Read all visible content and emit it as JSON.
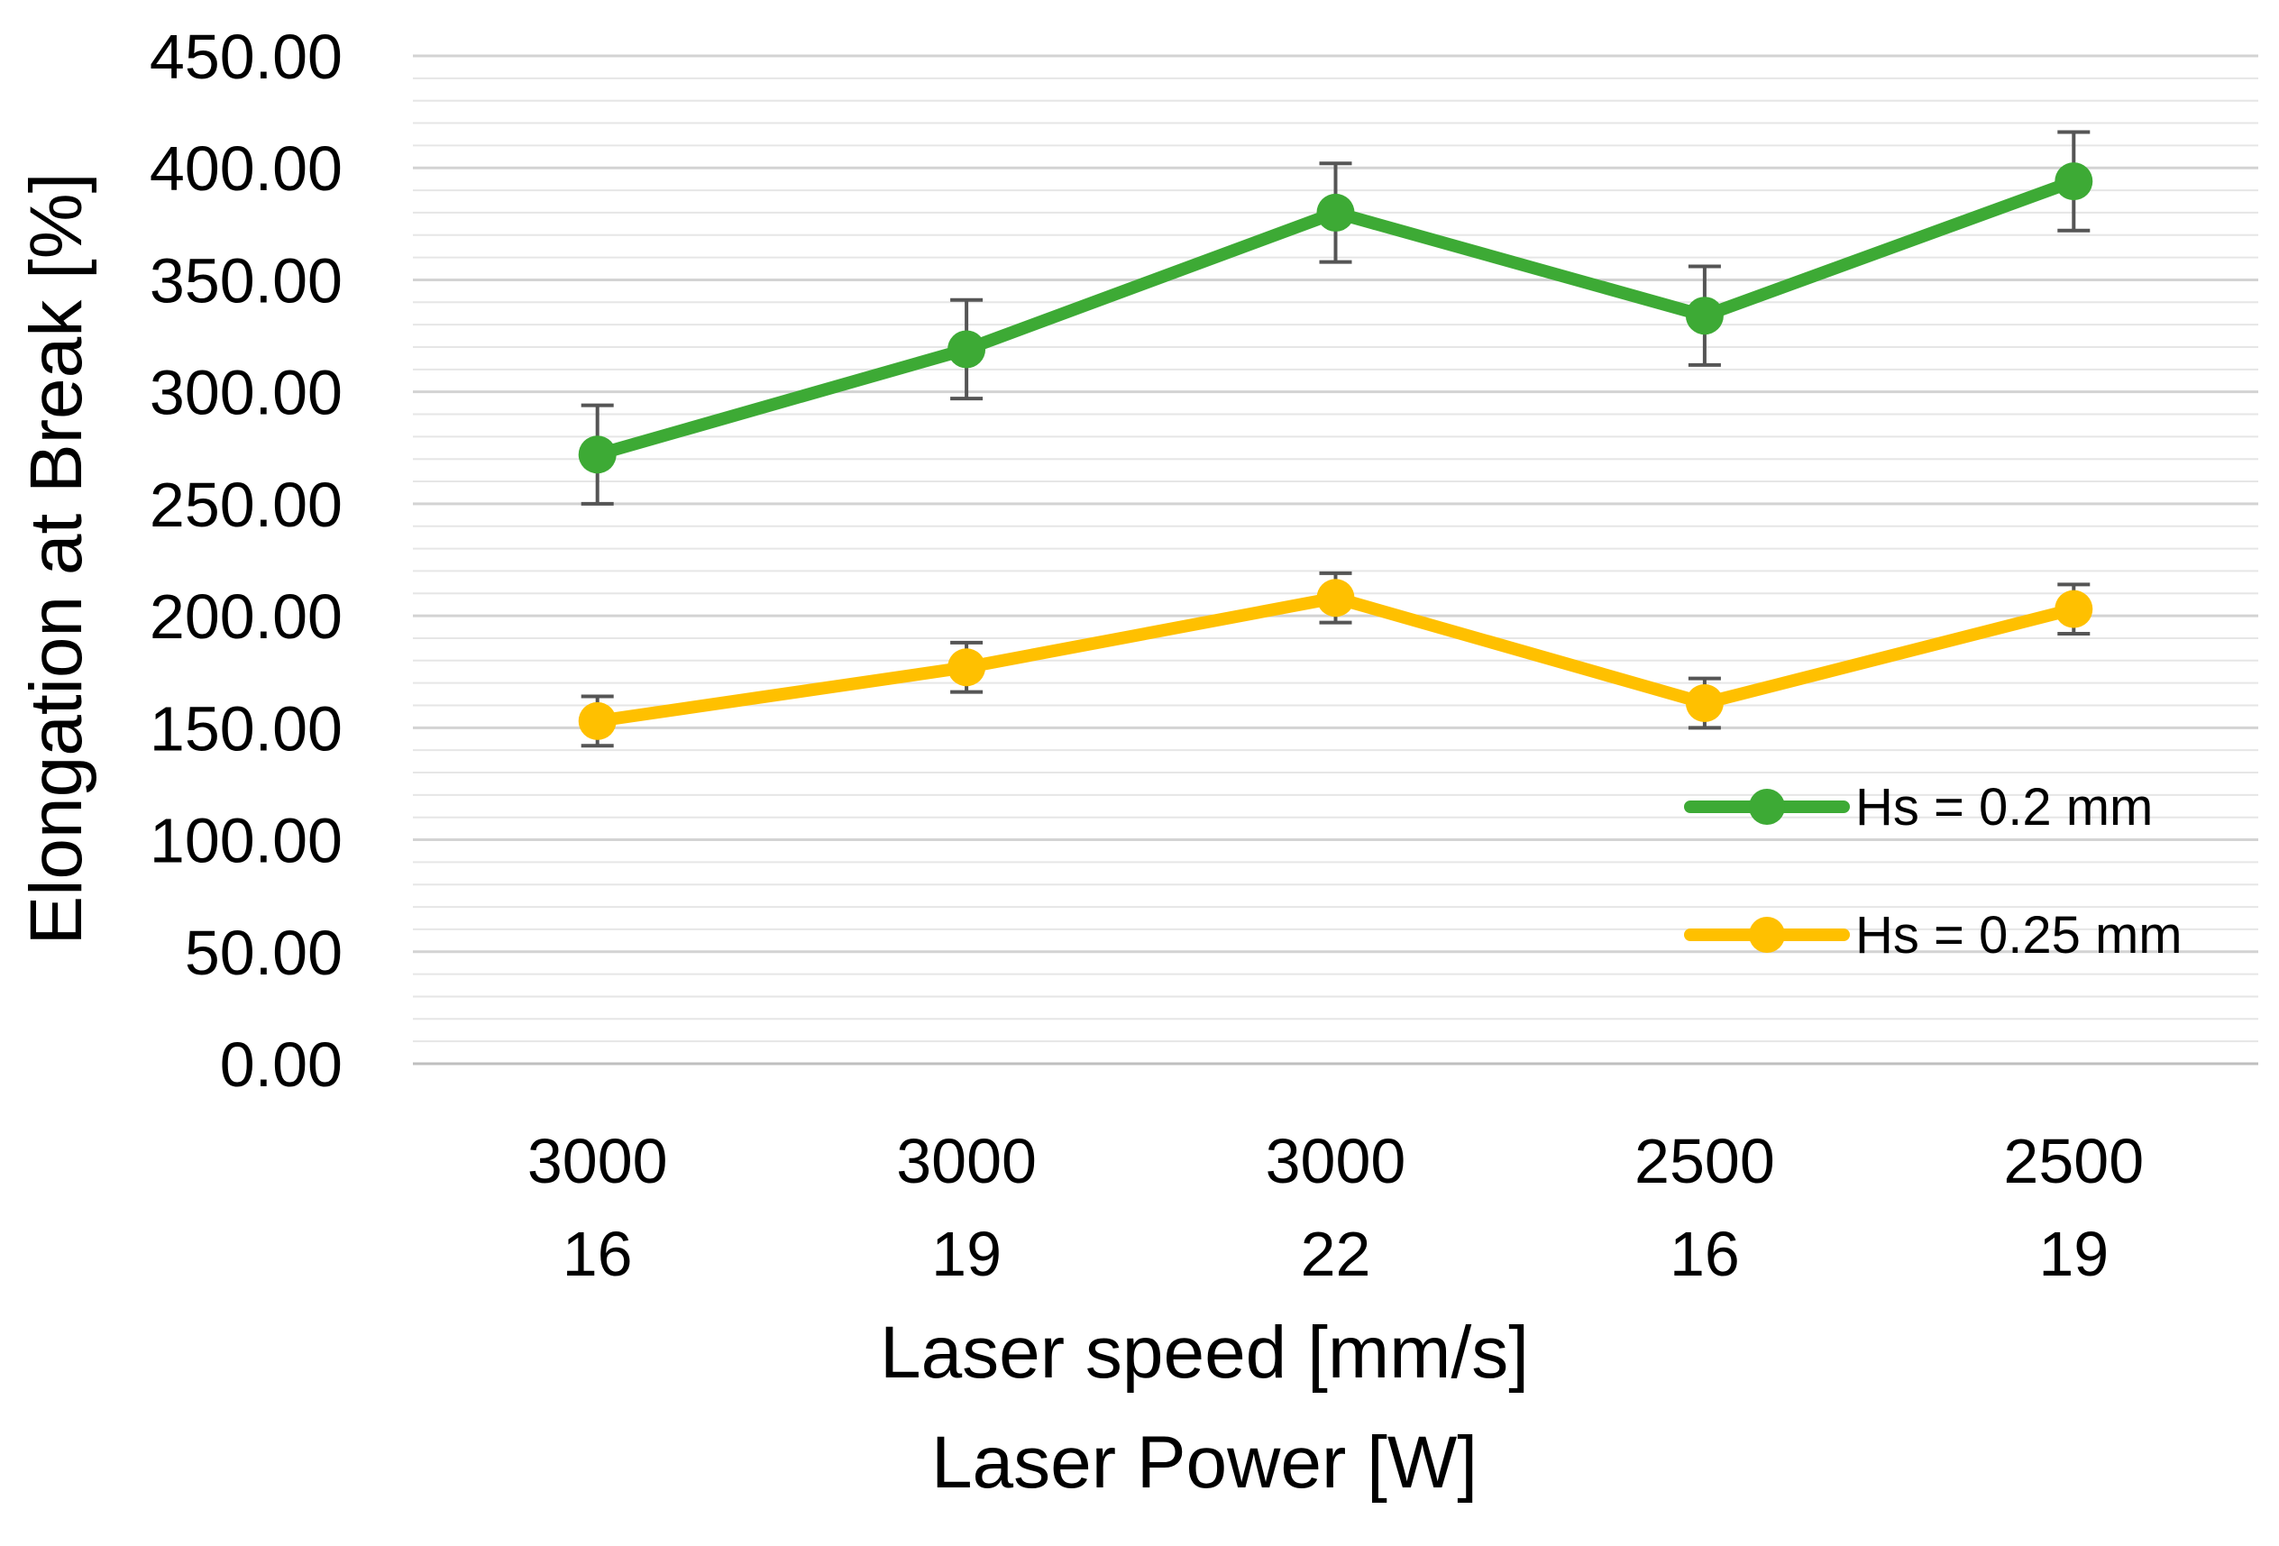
{
  "chart_data": {
    "type": "line",
    "title": "",
    "ylabel": "Elongation at Break [%]",
    "xlabel_lines": [
      "Laser speed [mm/s]",
      "Laser Power [W]"
    ],
    "categories": [
      [
        "3000",
        "16"
      ],
      [
        "3000",
        "19"
      ],
      [
        "3000",
        "22"
      ],
      [
        "2500",
        "16"
      ],
      [
        "2500",
        "19"
      ]
    ],
    "ylim": [
      0,
      450
    ],
    "y_major_step": 50,
    "y_minor_step": 10,
    "y_tick_labels": [
      "0.00",
      "50.00",
      "100.00",
      "150.00",
      "200.00",
      "250.00",
      "300.00",
      "350.00",
      "400.00",
      "450.00"
    ],
    "grid": true,
    "legend_position": "bottom-right",
    "series": [
      {
        "name": "Hs = 0.2 mm",
        "color": "#3DAA35",
        "values": [
          272,
          319,
          380,
          334,
          394
        ],
        "errors": [
          22,
          22,
          22,
          22,
          22
        ]
      },
      {
        "name": "Hs = 0.25 mm",
        "color": "#FFC000",
        "values": [
          153,
          177,
          208,
          161,
          203
        ],
        "errors": [
          11,
          11,
          11,
          11,
          11
        ]
      }
    ]
  }
}
